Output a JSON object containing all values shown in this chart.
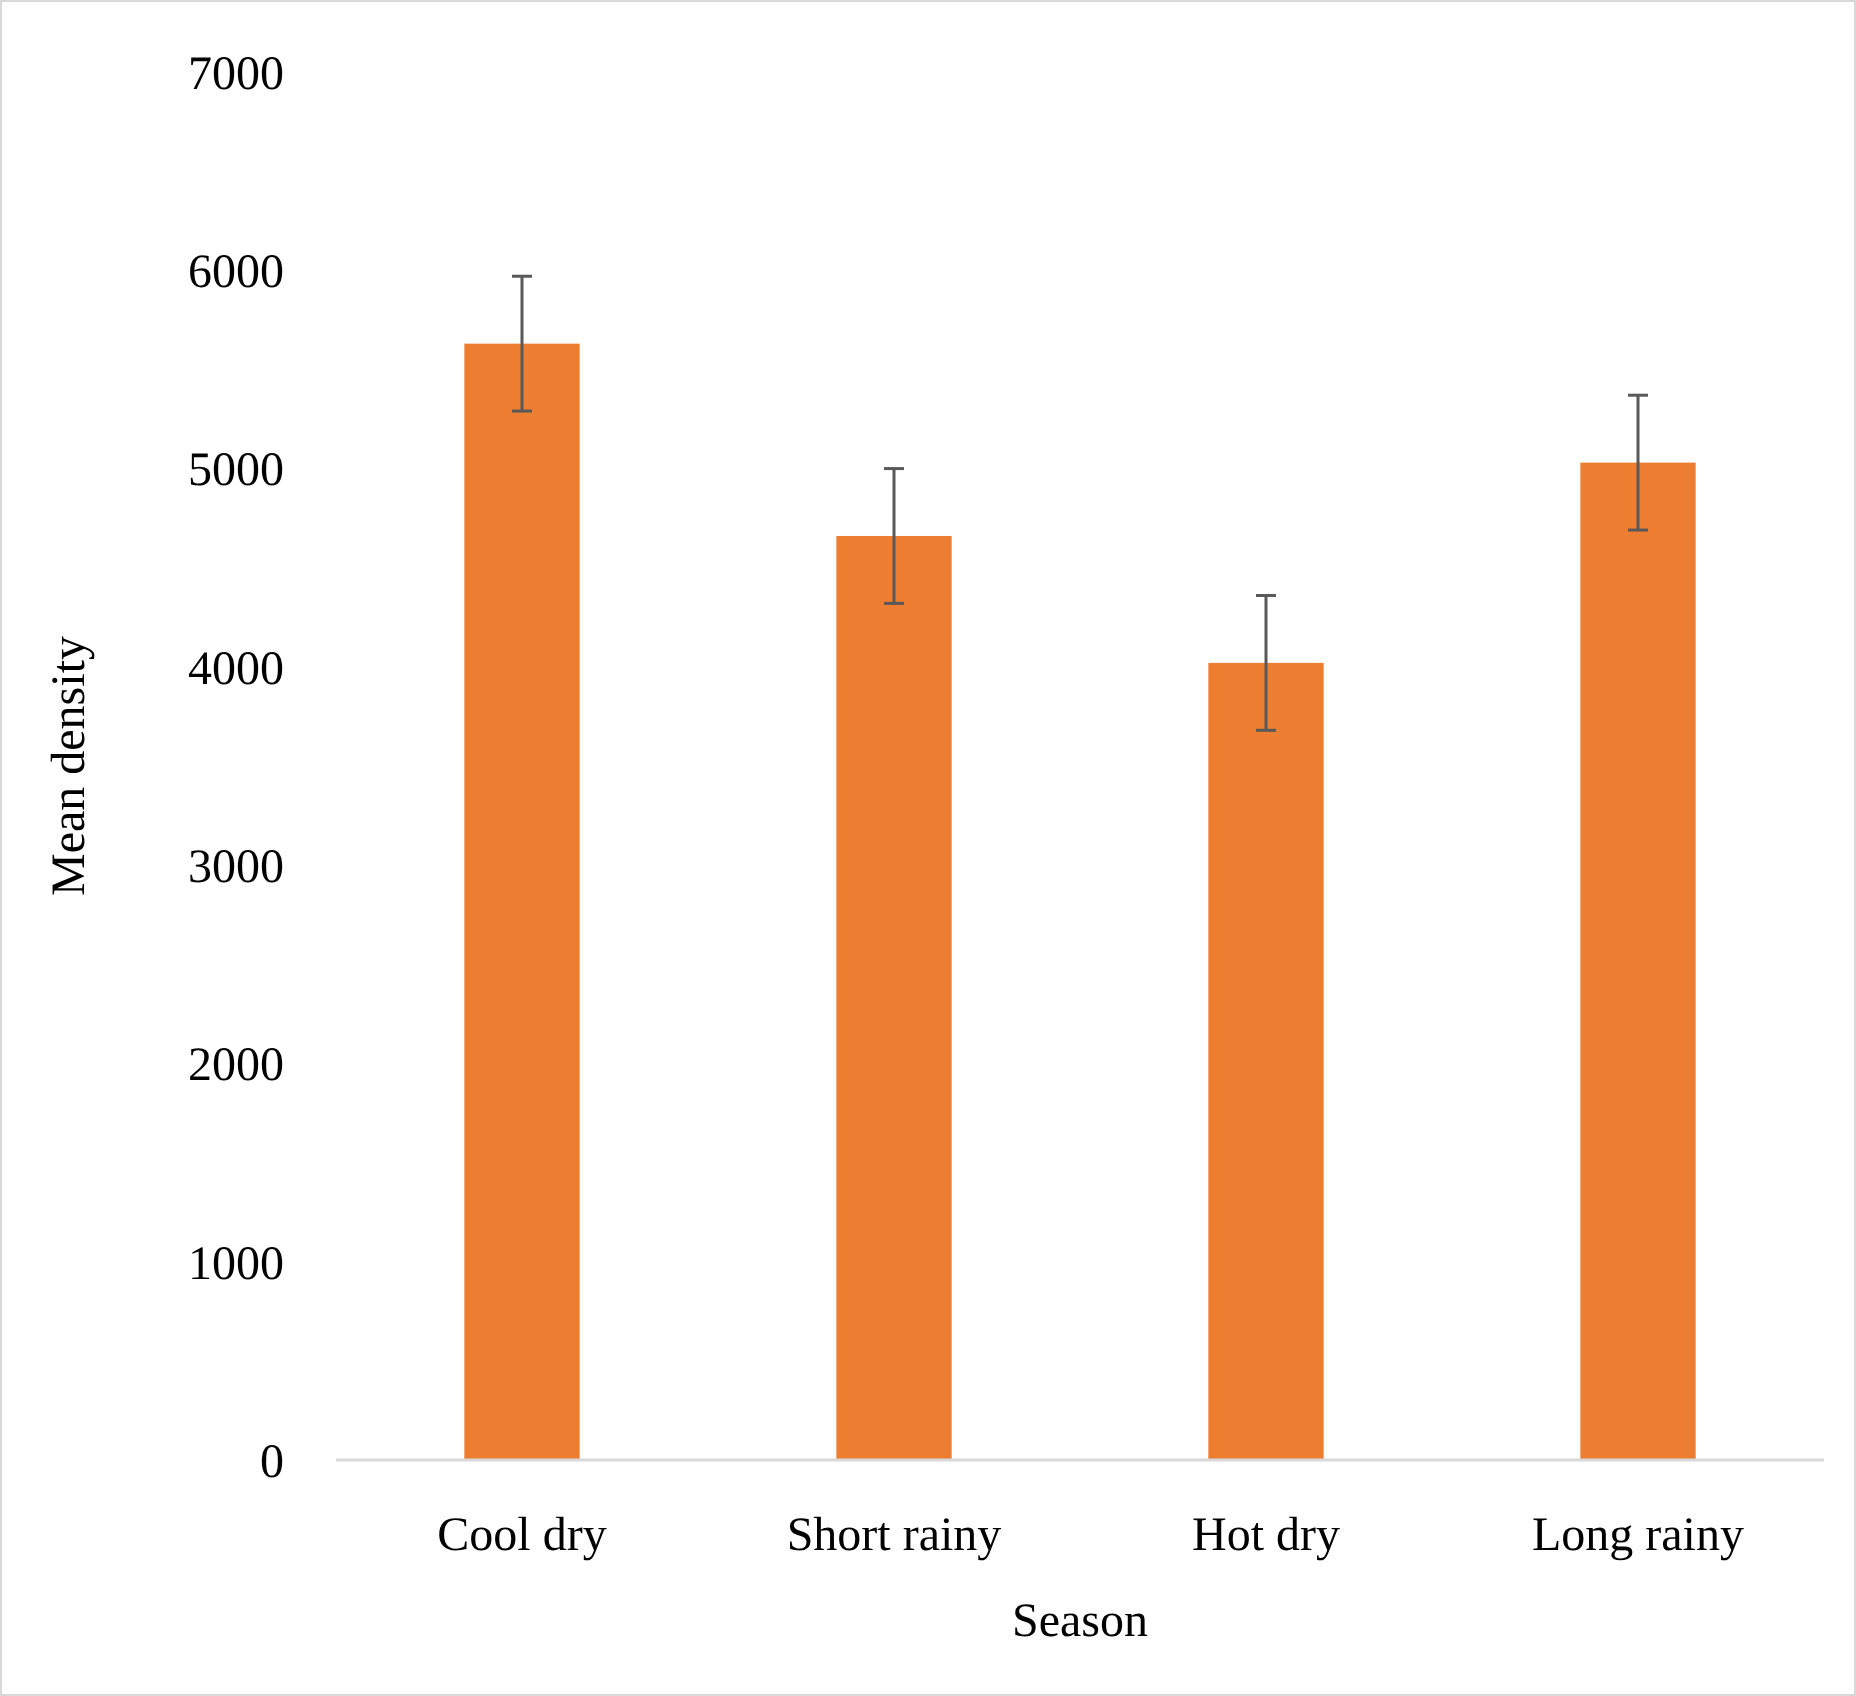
{
  "chart_data": {
    "type": "bar",
    "xlabel": "Season",
    "ylabel": "Mean density",
    "categories": [
      "Cool dry",
      "Short rainy",
      "Hot dry",
      "Long rainy"
    ],
    "values": [
      5630,
      4660,
      4020,
      5030
    ],
    "errors": [
      340,
      340,
      340,
      340
    ],
    "color": "#ed7d31",
    "ylim": [
      0,
      7000
    ],
    "yticks": [
      0,
      1000,
      2000,
      3000,
      4000,
      5000,
      6000,
      7000
    ],
    "grid": false
  }
}
